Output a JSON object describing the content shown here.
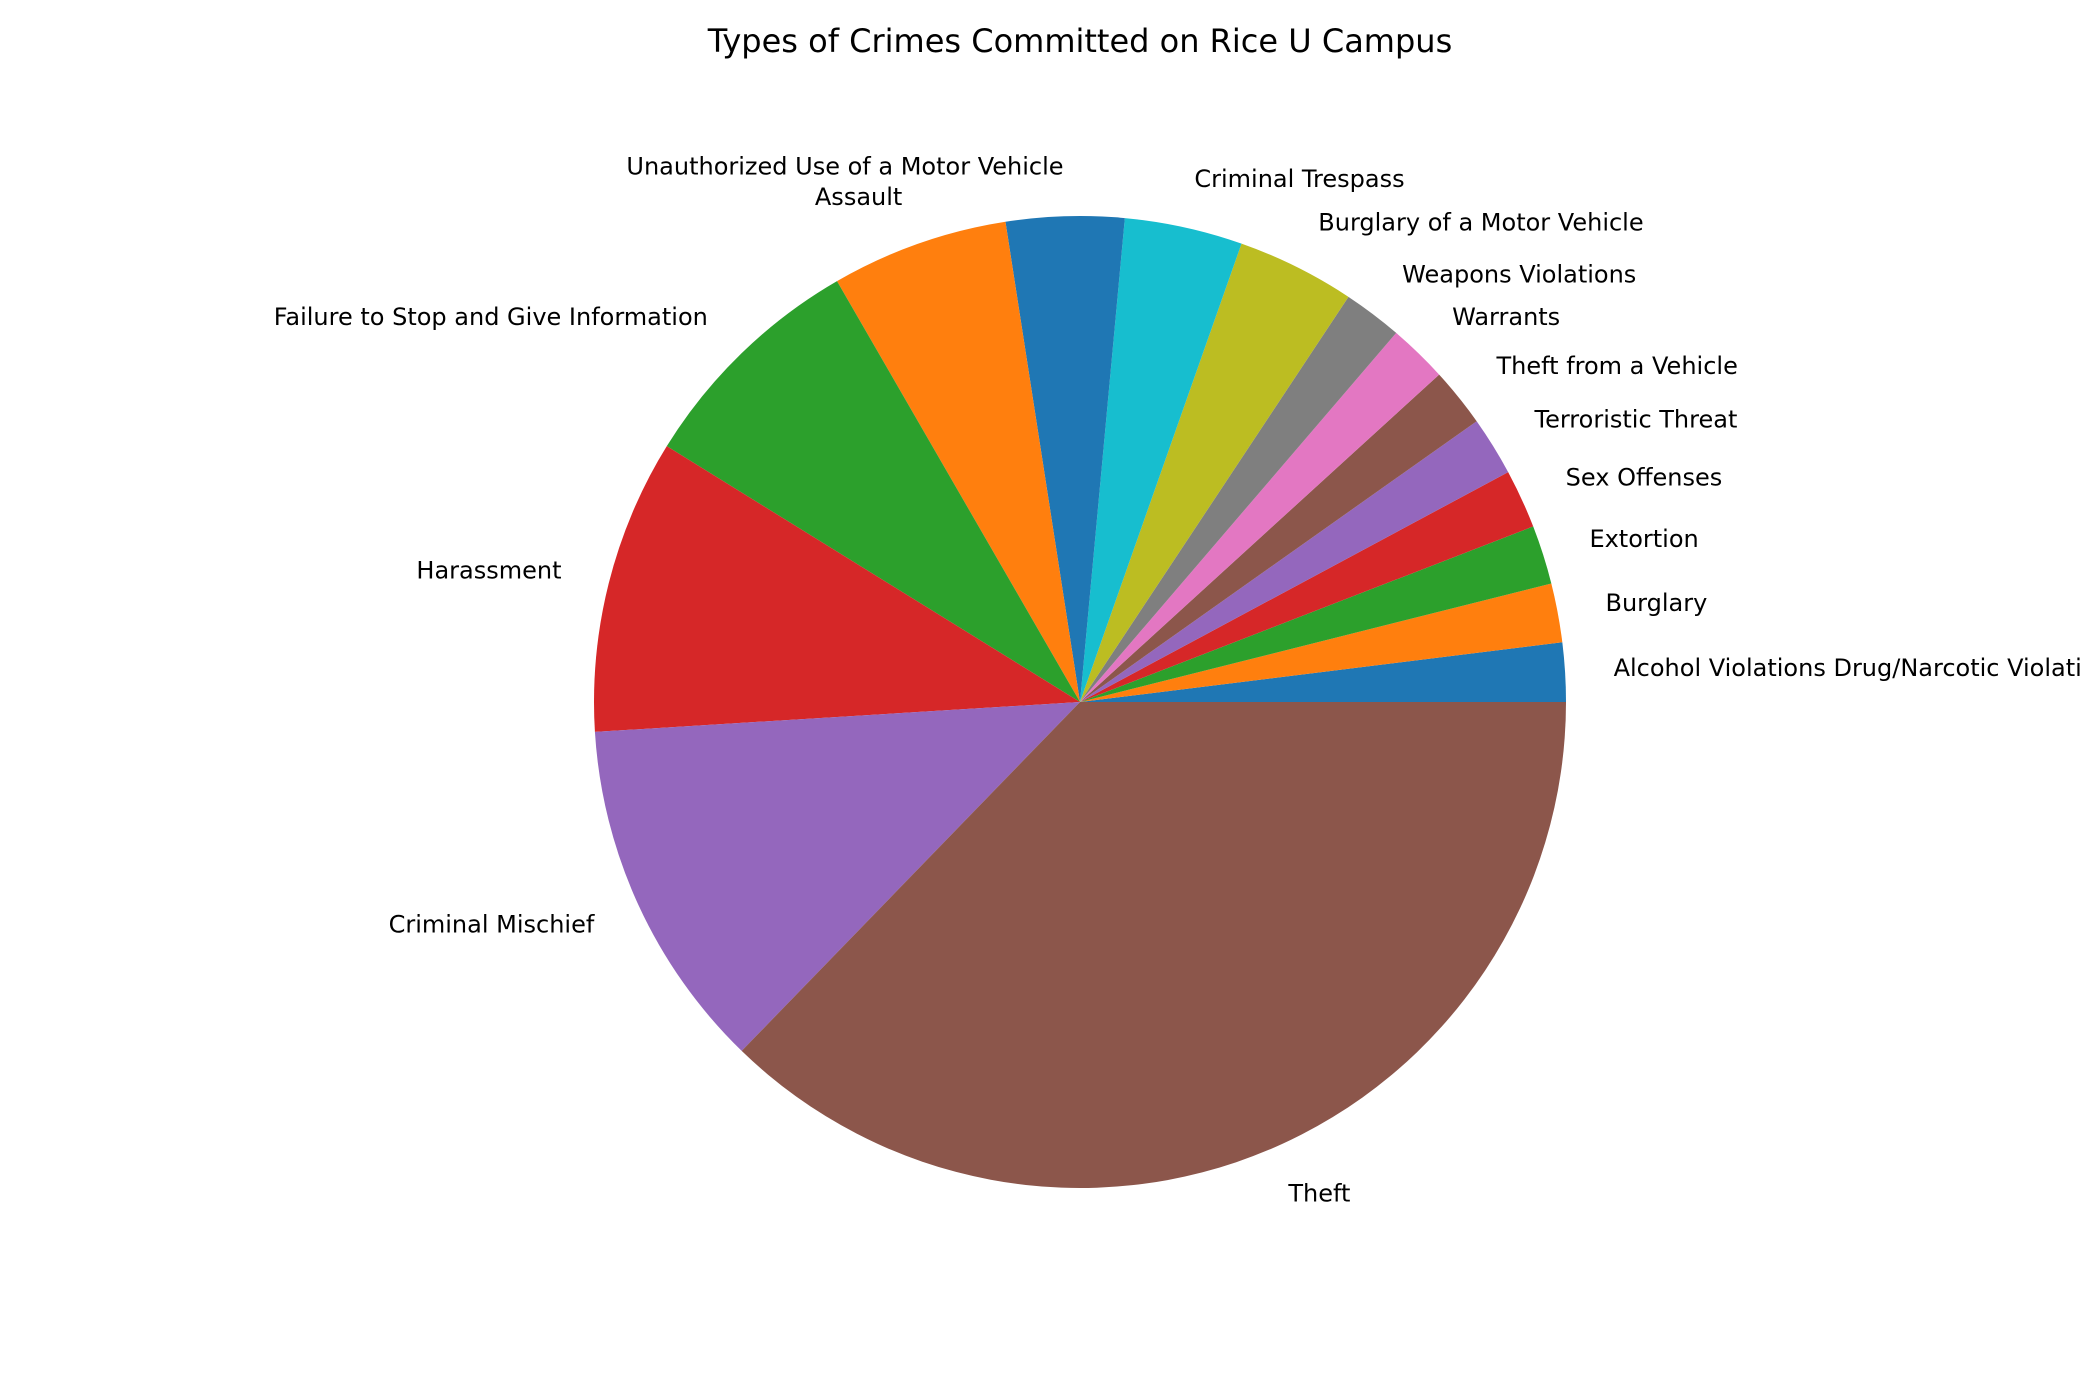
{
  "chart_data": {
    "type": "pie",
    "title": "Types of Crimes Committed on Rice U Campus",
    "start_angle_deg": 0,
    "direction": "counterclockwise",
    "slices": [
      {
        "label": "Alcohol Violations Drug/Narcotic Violations",
        "display_label": "Alcohol Violations Drug/Narcotic Violati",
        "value": 1,
        "color": "#1f77b4"
      },
      {
        "label": "Burglary",
        "value": 1,
        "color": "#ff7f0e"
      },
      {
        "label": "Extortion",
        "value": 1,
        "color": "#2ca02c"
      },
      {
        "label": "Sex Offenses",
        "value": 1,
        "color": "#d62728"
      },
      {
        "label": "Terroristic Threat",
        "value": 1,
        "color": "#9467bd"
      },
      {
        "label": "Theft from a Vehicle",
        "value": 1,
        "color": "#8c564b"
      },
      {
        "label": "Warrants",
        "value": 1,
        "color": "#e377c2"
      },
      {
        "label": "Weapons Violations",
        "value": 1,
        "color": "#7f7f7f"
      },
      {
        "label": "Burglary of a Motor Vehicle",
        "value": 2,
        "color": "#bcbd22"
      },
      {
        "label": "Criminal Trespass",
        "value": 2,
        "color": "#17becf"
      },
      {
        "label": "Unauthorized Use of a Motor Vehicle",
        "value": 2,
        "color": "#1f77b4"
      },
      {
        "label": "Assault",
        "value": 3,
        "color": "#ff7f0e"
      },
      {
        "label": "Failure to Stop and Give Information",
        "value": 4,
        "color": "#2ca02c"
      },
      {
        "label": "Harassment",
        "value": 5,
        "color": "#d62728"
      },
      {
        "label": "Criminal Mischief",
        "value": 6,
        "color": "#9467bd"
      },
      {
        "label": "Theft",
        "value": 19,
        "color": "#8c564b"
      }
    ]
  }
}
